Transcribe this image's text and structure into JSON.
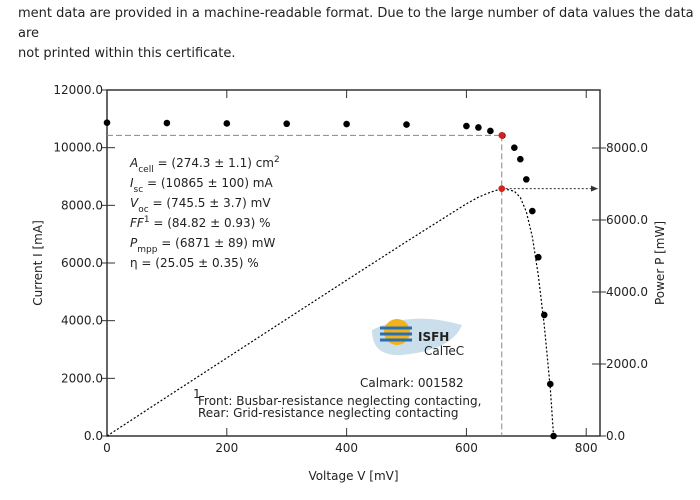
{
  "document": {
    "lines": [
      "ment data are provided in a machine-readable format.  Due to the large number of data values the data are",
      "not printed within this certificate."
    ]
  },
  "chart_data": {
    "type": "iv-curve",
    "x_label": "Voltage V [mV]",
    "y_label": "Current I [mA]",
    "y2_label": "Power P [mW]",
    "x": [
      0,
      100,
      200,
      300,
      400,
      500,
      600,
      620,
      640,
      660,
      680,
      690,
      700,
      710,
      720,
      730,
      740,
      745.5
    ],
    "series": [
      {
        "name": "Current",
        "color": "#000000",
        "values": [
          10865,
          10855,
          10840,
          10830,
          10820,
          10800,
          10750,
          10700,
          10580,
          10420,
          10000,
          9600,
          8900,
          7800,
          6200,
          4200,
          1800,
          0
        ]
      },
      {
        "name": "Power",
        "axis": "y2",
        "color": "#000000",
        "values": [
          0,
          1086,
          2168,
          3249,
          4328,
          5400,
          6450,
          6634,
          6771,
          6877,
          6800,
          6624,
          6230,
          5538,
          4464,
          3066,
          1332,
          0
        ]
      }
    ],
    "mpp": {
      "voltage": 659,
      "current": 10427,
      "power": 6871,
      "color": "#d62020"
    },
    "xlim": [
      0,
      823
    ],
    "xticks": [
      0,
      200,
      400,
      600,
      800
    ],
    "ylim": [
      0,
      12000
    ],
    "yticks": [
      {
        "value": 0,
        "label": "0.0"
      },
      {
        "value": 2000,
        "label": "2000.0"
      },
      {
        "value": 4000,
        "label": "4000.0"
      },
      {
        "value": 6000,
        "label": "6000.0"
      },
      {
        "value": 8000,
        "label": "8000.0"
      },
      {
        "value": 10000,
        "label": "10000.0"
      },
      {
        "value": 12000,
        "label": "12000.0"
      }
    ],
    "y2lim": [
      0,
      9611
    ],
    "y2ticks": [
      {
        "value": 0,
        "label": "0.0"
      },
      {
        "value": 2000,
        "label": "2000.0"
      },
      {
        "value": 4000,
        "label": "4000.0"
      },
      {
        "value": 6000,
        "label": "6000.0"
      },
      {
        "value": 8000,
        "label": "8000.0"
      }
    ],
    "parameters": [
      [
        {
          "t": "A",
          "style": "i"
        },
        {
          "t": "cell",
          "style": "sub"
        },
        {
          "t": " = (274.3 ± 1.1) cm",
          "style": "n"
        },
        {
          "t": "2",
          "style": "sup"
        }
      ],
      [
        {
          "t": "I",
          "style": "i"
        },
        {
          "t": "sc",
          "style": "sub"
        },
        {
          "t": " = (10865 ± 100) mA",
          "style": "n"
        }
      ],
      [
        {
          "t": "V",
          "style": "i"
        },
        {
          "t": "oc",
          "style": "sub"
        },
        {
          "t": " = (745.5 ± 3.7) mV",
          "style": "n"
        }
      ],
      [
        {
          "t": "FF",
          "style": "i"
        },
        {
          "t": "1",
          "style": "sup"
        },
        {
          "t": " = (84.82 ± 0.93) %",
          "style": "n"
        }
      ],
      [
        {
          "t": "P",
          "style": "i"
        },
        {
          "t": "mpp",
          "style": "sub"
        },
        {
          "t": " = (6871 ± 89) mW",
          "style": "n"
        }
      ],
      [
        {
          "t": "η = (25.05 ± 0.35) %",
          "style": "n"
        }
      ]
    ],
    "calmark": "Calmark: 001582",
    "logo": {
      "name": "ISFH",
      "sub": "CalTeC"
    },
    "footnote": [
      "1",
      "Front: Busbar-resistance neglecting contacting,",
      "Rear: Grid-resistance neglecting contacting"
    ]
  }
}
